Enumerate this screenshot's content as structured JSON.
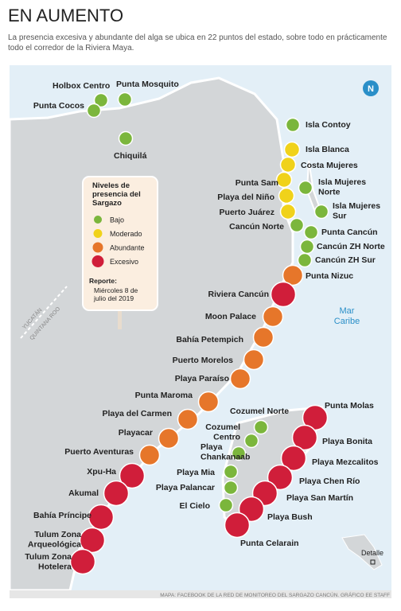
{
  "header": {
    "title": "EN AUMENTO",
    "subtitle": [
      "La presencia excesiva y abundante del alga se ubica en 22 puntos del estado, sobre todo en prácticamente",
      "todo el corredor de la Riviera Maya."
    ]
  },
  "legend": {
    "title": [
      "Niveles de",
      "presencia del",
      "Sargazo"
    ],
    "items": [
      {
        "label": "Bajo",
        "color": "#7bb63c"
      },
      {
        "label": "Moderado",
        "color": "#f0d21a"
      },
      {
        "label": "Abundante",
        "color": "#e6762a"
      },
      {
        "label": "Excesivo",
        "color": "#d01e3a"
      }
    ],
    "report_label": "Reporte:",
    "report_text": [
      "Miércoles 8 de",
      "julio del 2019"
    ]
  },
  "map_labels": {
    "compass": "N",
    "state_north": "YUCATÁN",
    "state_south": "QUINTANA ROO",
    "sea": [
      "Mar",
      "Caribe"
    ],
    "detail": "Detalle"
  },
  "points": [
    {
      "label": [
        "Holbox Centro"
      ],
      "color": "#7bb63c"
    },
    {
      "label": [
        "Punta Mosquito"
      ],
      "color": "#7bb63c"
    },
    {
      "label": [
        "Punta Cocos"
      ],
      "color": "#7bb63c"
    },
    {
      "label": [
        "Chiquilá"
      ],
      "color": "#7bb63c"
    },
    {
      "label": [
        "Isla Contoy"
      ],
      "color": "#7bb63c"
    },
    {
      "label": [
        "Isla Blanca"
      ],
      "color": "#f0d21a"
    },
    {
      "label": [
        "Costa Mujeres"
      ],
      "color": "#f0d21a"
    },
    {
      "label": [
        "Punta Sam"
      ],
      "color": "#f0d21a"
    },
    {
      "label": [
        "Playa del Niño"
      ],
      "color": "#f0d21a"
    },
    {
      "label": [
        "Puerto Juárez"
      ],
      "color": "#f0d21a"
    },
    {
      "label": [
        "Isla Mujeres",
        "Norte"
      ],
      "color": "#7bb63c"
    },
    {
      "label": [
        "Isla Mujeres",
        "Sur"
      ],
      "color": "#7bb63c"
    },
    {
      "label": [
        "Cancún Norte"
      ],
      "color": "#7bb63c"
    },
    {
      "label": [
        "Punta Cancún"
      ],
      "color": "#7bb63c"
    },
    {
      "label": [
        "Cancún ZH Norte"
      ],
      "color": "#7bb63c"
    },
    {
      "label": [
        "Cancún ZH Sur"
      ],
      "color": "#7bb63c"
    },
    {
      "label": [
        "Punta Nizuc"
      ],
      "color": "#e6762a"
    },
    {
      "label": [
        "Riviera Cancún"
      ],
      "color": "#d01e3a"
    },
    {
      "label": [
        "Moon Palace"
      ],
      "color": "#e6762a"
    },
    {
      "label": [
        "Bahía Petempich"
      ],
      "color": "#e6762a"
    },
    {
      "label": [
        "Puerto Morelos"
      ],
      "color": "#e6762a"
    },
    {
      "label": [
        "Playa Paraíso"
      ],
      "color": "#e6762a"
    },
    {
      "label": [
        "Punta Maroma"
      ],
      "color": "#e6762a"
    },
    {
      "label": [
        "Playa del Carmen"
      ],
      "color": "#e6762a"
    },
    {
      "label": [
        "Playacar"
      ],
      "color": "#e6762a"
    },
    {
      "label": [
        "Puerto Aventuras"
      ],
      "color": "#e6762a"
    },
    {
      "label": [
        "Xpu-Ha"
      ],
      "color": "#d01e3a"
    },
    {
      "label": [
        "Akumal"
      ],
      "color": "#d01e3a"
    },
    {
      "label": [
        "Bahía Príncipe"
      ],
      "color": "#d01e3a"
    },
    {
      "label": [
        "Tulum Zona",
        "Arqueológica"
      ],
      "color": "#d01e3a"
    },
    {
      "label": [
        "Tulum Zona",
        "Hotelera"
      ],
      "color": "#d01e3a"
    },
    {
      "label": [
        "Cozumel Norte"
      ],
      "color": "#7bb63c"
    },
    {
      "label": [
        "Cozumel",
        "Centro"
      ],
      "color": "#7bb63c"
    },
    {
      "label": [
        "Playa",
        "Chankanaab"
      ],
      "color": "#7bb63c"
    },
    {
      "label": [
        "Playa Mia"
      ],
      "color": "#7bb63c"
    },
    {
      "label": [
        "Playa Palancar"
      ],
      "color": "#7bb63c"
    },
    {
      "label": [
        "El Cielo"
      ],
      "color": "#7bb63c"
    },
    {
      "label": [
        "Punta Molas"
      ],
      "color": "#d01e3a"
    },
    {
      "label": [
        "Playa Bonita"
      ],
      "color": "#d01e3a"
    },
    {
      "label": [
        "Playa Mezcalitos"
      ],
      "color": "#d01e3a"
    },
    {
      "label": [
        "Playa Chen Río"
      ],
      "color": "#d01e3a"
    },
    {
      "label": [
        "Playa San Martín"
      ],
      "color": "#d01e3a"
    },
    {
      "label": [
        "Playa Bush"
      ],
      "color": "#d01e3a"
    },
    {
      "label": [
        "Punta Celarain"
      ],
      "color": "#d01e3a"
    }
  ],
  "footer": {
    "credit": "MAPA: FACEBOOK DE LA RED DE MONITOREO DEL SARGAZO CANCÚN. GRÁFICO EE STAFF"
  }
}
